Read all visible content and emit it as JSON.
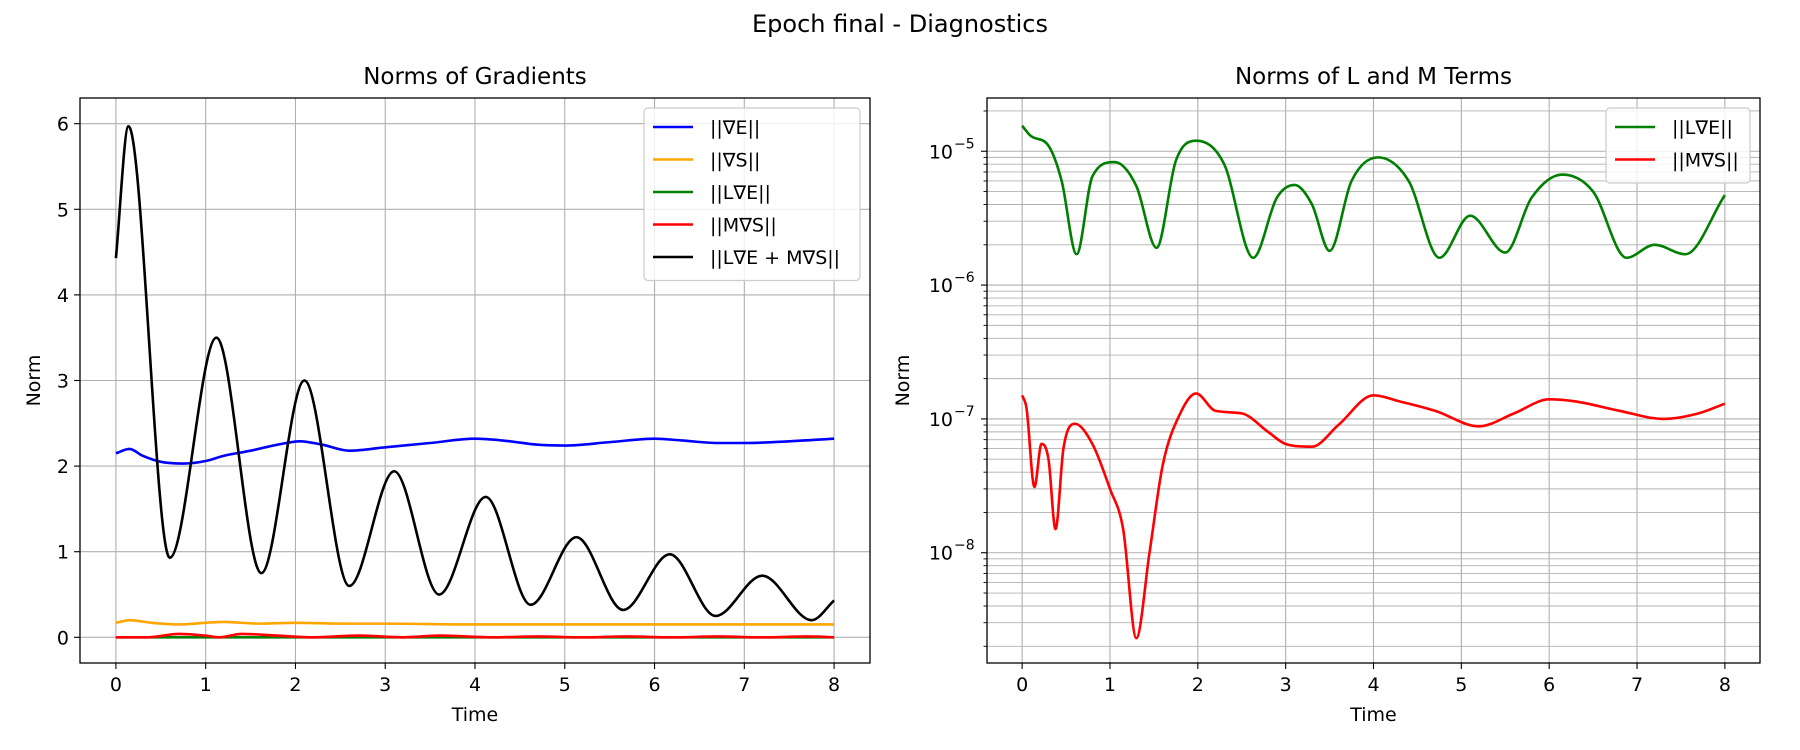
{
  "figure": {
    "suptitle": "Epoch final - Diagnostics"
  },
  "chart_data": [
    {
      "type": "line",
      "title": "Norms of Gradients",
      "xlabel": "Time",
      "ylabel": "Norm",
      "yscale": "linear",
      "xlim": [
        -0.4,
        8.4
      ],
      "ylim": [
        -0.3,
        6.3
      ],
      "xticks": [
        0,
        1,
        2,
        3,
        4,
        5,
        6,
        7,
        8
      ],
      "xtick_labels": [
        "0",
        "1",
        "2",
        "3",
        "4",
        "5",
        "6",
        "7",
        "8"
      ],
      "yticks": [
        0,
        1,
        2,
        3,
        4,
        5,
        6
      ],
      "ytick_labels": [
        "0",
        "1",
        "2",
        "3",
        "4",
        "5",
        "6"
      ],
      "grid": true,
      "legend_loc": "upper right",
      "series": [
        {
          "name": "||∇E||",
          "color": "#0000ff",
          "x": [
            0,
            0.15,
            0.3,
            0.5,
            0.75,
            1.0,
            1.2,
            1.5,
            1.8,
            2.05,
            2.3,
            2.6,
            3.0,
            3.5,
            4.0,
            4.3,
            4.7,
            5.0,
            5.5,
            6.0,
            6.3,
            6.7,
            7.0,
            7.5,
            8.0
          ],
          "y": [
            2.15,
            2.2,
            2.12,
            2.05,
            2.03,
            2.06,
            2.12,
            2.18,
            2.25,
            2.29,
            2.25,
            2.18,
            2.22,
            2.27,
            2.32,
            2.3,
            2.25,
            2.24,
            2.28,
            2.32,
            2.3,
            2.27,
            2.27,
            2.29,
            2.32
          ]
        },
        {
          "name": "||∇S||",
          "color": "#ffa500",
          "x": [
            0,
            0.15,
            0.4,
            0.7,
            1.0,
            1.2,
            1.6,
            2.0,
            2.5,
            3.0,
            4.0,
            5.0,
            6.0,
            7.0,
            8.0
          ],
          "y": [
            0.17,
            0.2,
            0.17,
            0.15,
            0.17,
            0.18,
            0.16,
            0.17,
            0.16,
            0.16,
            0.15,
            0.15,
            0.15,
            0.15,
            0.15
          ]
        },
        {
          "name": "||L∇E||",
          "color": "#008000",
          "x": [
            0,
            8
          ],
          "y": [
            0,
            0
          ]
        },
        {
          "name": "||M∇S||",
          "color": "#ff0000",
          "x": [
            0,
            0.35,
            0.7,
            1.0,
            1.15,
            1.4,
            1.8,
            2.2,
            2.7,
            3.2,
            3.6,
            4.2,
            4.7,
            5.2,
            5.7,
            6.2,
            6.7,
            7.2,
            7.7,
            8.0
          ],
          "y": [
            0.0,
            0.0,
            0.04,
            0.02,
            0.0,
            0.04,
            0.02,
            0.0,
            0.02,
            0.0,
            0.02,
            0.0,
            0.01,
            0.0,
            0.01,
            0.0,
            0.01,
            0.0,
            0.01,
            0.0
          ]
        },
        {
          "name": "||L∇E + M∇S||",
          "color": "#000000",
          "x": [
            0,
            0.14,
            0.6,
            1.12,
            1.62,
            2.1,
            2.6,
            3.1,
            3.6,
            4.12,
            4.62,
            5.13,
            5.65,
            6.17,
            6.68,
            7.2,
            7.75,
            8.0
          ],
          "y": [
            4.43,
            5.97,
            0.93,
            3.5,
            0.75,
            3.0,
            0.6,
            1.94,
            0.5,
            1.64,
            0.38,
            1.17,
            0.32,
            0.97,
            0.25,
            0.72,
            0.2,
            0.43
          ]
        }
      ]
    },
    {
      "type": "line",
      "title": "Norms of L and M Terms",
      "xlabel": "Time",
      "ylabel": "Norm",
      "yscale": "log",
      "xlim": [
        -0.4,
        8.4
      ],
      "ylim": [
        1.5e-09,
        2.5e-05
      ],
      "xticks": [
        0,
        1,
        2,
        3,
        4,
        5,
        6,
        7,
        8
      ],
      "xtick_labels": [
        "0",
        "1",
        "2",
        "3",
        "4",
        "5",
        "6",
        "7",
        "8"
      ],
      "yticks": [
        1e-08,
        1e-07,
        1e-06,
        1e-05
      ],
      "ytick_labels": [
        "10",
        "10",
        "10",
        "10"
      ],
      "ytick_exponents": [
        "−8",
        "−7",
        "−6",
        "−5"
      ],
      "grid": true,
      "legend_loc": "upper right",
      "series": [
        {
          "name": "||L∇E||",
          "color": "#008000",
          "x": [
            0,
            0.1,
            0.3,
            0.45,
            0.62,
            0.8,
            1.05,
            1.3,
            1.53,
            1.75,
            1.98,
            2.3,
            2.63,
            2.9,
            3.1,
            3.3,
            3.5,
            3.75,
            4.05,
            4.4,
            4.75,
            5.1,
            5.5,
            5.8,
            6.15,
            6.5,
            6.88,
            7.2,
            7.55,
            8.0
          ],
          "y": [
            1.55e-05,
            1.3e-05,
            1.1e-05,
            6e-06,
            1.7e-06,
            6.5e-06,
            8.3e-06,
            5.5e-06,
            1.9e-06,
            8.5e-06,
            1.2e-05,
            8e-06,
            1.6e-06,
            4.5e-06,
            5.6e-06,
            4e-06,
            1.8e-06,
            6e-06,
            9e-06,
            6e-06,
            1.6e-06,
            3.3e-06,
            1.75e-06,
            4.5e-06,
            6.7e-06,
            5e-06,
            1.6e-06,
            2e-06,
            1.7e-06,
            4.7e-06
          ]
        },
        {
          "name": "||M∇S||",
          "color": "#ff0000",
          "x": [
            0,
            0.05,
            0.14,
            0.22,
            0.3,
            0.38,
            0.47,
            0.6,
            0.8,
            1.0,
            1.15,
            1.3,
            1.45,
            1.6,
            1.8,
            1.98,
            2.2,
            2.5,
            2.8,
            3.0,
            3.3,
            3.6,
            4.0,
            4.3,
            4.7,
            5.2,
            5.6,
            6.0,
            6.3,
            6.8,
            7.3,
            7.7,
            8.0
          ],
          "y": [
            1.5e-07,
            1.2e-07,
            3.1e-08,
            6.5e-08,
            5e-08,
            1.5e-08,
            6e-08,
            9.2e-08,
            6.5e-08,
            3e-08,
            1.5e-08,
            2.3e-09,
            1e-08,
            4.5e-08,
            1.1e-07,
            1.55e-07,
            1.15e-07,
            1.1e-07,
            8e-08,
            6.5e-08,
            6.2e-08,
            9e-08,
            1.5e-07,
            1.35e-07,
            1.15e-07,
            8.8e-08,
            1.1e-07,
            1.4e-07,
            1.35e-07,
            1.15e-07,
            1e-07,
            1.1e-07,
            1.3e-07
          ]
        }
      ]
    }
  ]
}
